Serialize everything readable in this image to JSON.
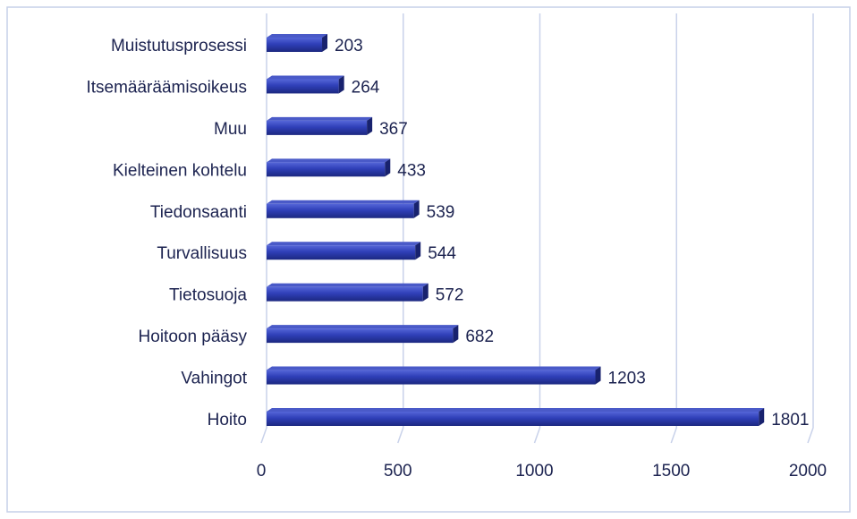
{
  "chart_data": {
    "type": "bar",
    "orientation": "horizontal",
    "categories": [
      "Muistutusprosessi",
      "Itsemääräämisoikeus",
      "Muu",
      "Kielteinen kohtelu",
      "Tiedonsaanti",
      "Turvallisuus",
      "Tietosuoja",
      "Hoitoon pääsy",
      "Vahingot",
      "Hoito"
    ],
    "values": [
      203,
      264,
      367,
      433,
      539,
      544,
      572,
      682,
      1203,
      1801
    ],
    "color": "#2f3fb8",
    "xlim": [
      0,
      2000
    ],
    "xticks": [
      0,
      500,
      1000,
      1500,
      2000
    ],
    "grid": true
  }
}
